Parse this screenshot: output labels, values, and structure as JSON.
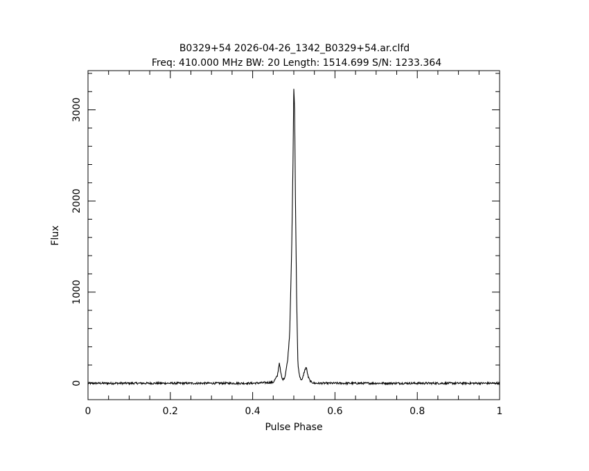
{
  "chart_data": {
    "type": "line",
    "title": "B0329+54 2026-04-26_1342_B0329+54.ar.clfd",
    "subtitle": "Freq: 410.000 MHz BW: 20 Length: 1514.699 S/N: 1233.364",
    "xlabel": "Pulse Phase",
    "ylabel": "Flux",
    "xlim": [
      0,
      1
    ],
    "ylim": [
      -180,
      3430
    ],
    "x_ticks": [
      "0",
      "0.2",
      "0.4",
      "0.6",
      "0.8",
      "1"
    ],
    "y_ticks": [
      "0",
      "1000",
      "2000",
      "3000"
    ],
    "grid": false,
    "series": [
      {
        "x": [
          0.0,
          0.1,
          0.2,
          0.3,
          0.4,
          0.45,
          0.46,
          0.465,
          0.468,
          0.472,
          0.478,
          0.485,
          0.49,
          0.495,
          0.498,
          0.5,
          0.502,
          0.504,
          0.507,
          0.51,
          0.515,
          0.52,
          0.525,
          0.53,
          0.535,
          0.54,
          0.55,
          0.6,
          0.7,
          0.8,
          0.9,
          1.0
        ],
        "values": [
          0,
          0,
          0,
          0,
          0,
          10,
          80,
          230,
          120,
          40,
          60,
          250,
          550,
          1500,
          2400,
          3240,
          3000,
          2000,
          900,
          200,
          60,
          30,
          120,
          180,
          70,
          20,
          0,
          0,
          0,
          0,
          0,
          0
        ]
      }
    ]
  }
}
